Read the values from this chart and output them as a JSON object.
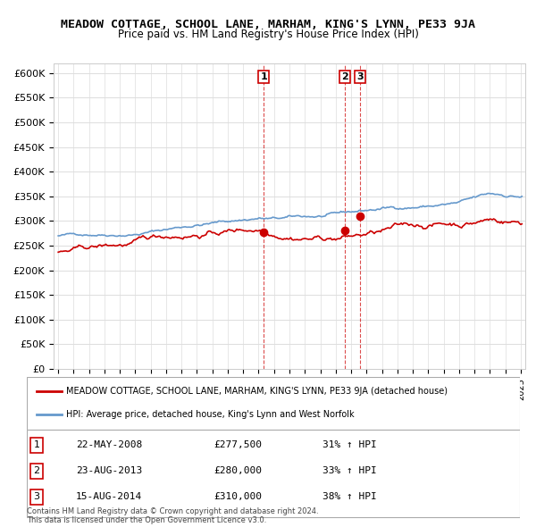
{
  "title": "MEADOW COTTAGE, SCHOOL LANE, MARHAM, KING'S LYNN, PE33 9JA",
  "subtitle": "Price paid vs. HM Land Registry's House Price Index (HPI)",
  "red_line_label": "MEADOW COTTAGE, SCHOOL LANE, MARHAM, KING'S LYNN, PE33 9JA (detached house)",
  "blue_line_label": "HPI: Average price, detached house, King's Lynn and West Norfolk",
  "transactions": [
    {
      "num": 1,
      "date": "22-MAY-2008",
      "price": 277500,
      "pct": "31%",
      "dir": "↑"
    },
    {
      "num": 2,
      "date": "23-AUG-2013",
      "price": 280000,
      "pct": "33%",
      "dir": "↑"
    },
    {
      "num": 3,
      "date": "15-AUG-2014",
      "price": 310000,
      "pct": "38%",
      "dir": "↑"
    }
  ],
  "footnote1": "Contains HM Land Registry data © Crown copyright and database right 2024.",
  "footnote2": "This data is licensed under the Open Government Licence v3.0.",
  "ylim": [
    0,
    620000
  ],
  "yticks": [
    0,
    50000,
    100000,
    150000,
    200000,
    250000,
    300000,
    350000,
    400000,
    450000,
    500000,
    550000,
    600000
  ],
  "ylabel_format": "£{0}K",
  "red_color": "#cc0000",
  "blue_color": "#6699cc",
  "vline_color": "#cc0000",
  "background_color": "#ffffff",
  "grid_color": "#dddddd"
}
